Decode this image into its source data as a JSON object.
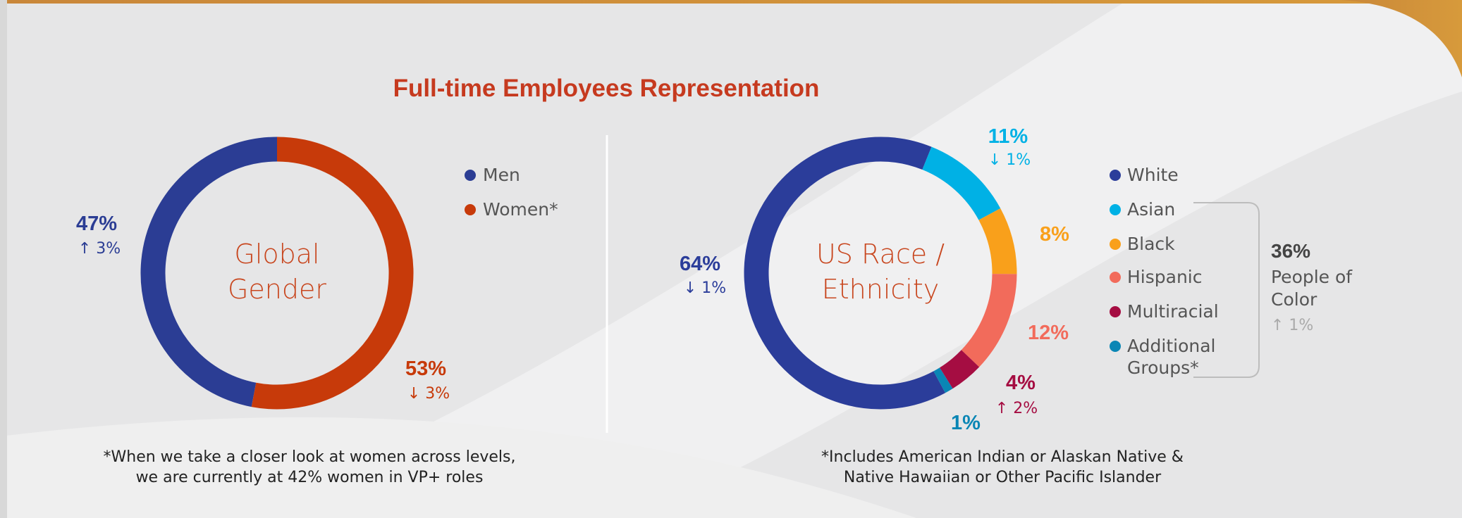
{
  "title": "Full-time Employees Representation",
  "chart_data": [
    {
      "type": "donut",
      "center_label": "Global Gender",
      "categories": [
        "Men",
        "Women*"
      ],
      "values": [
        47,
        53
      ],
      "value_labels": [
        "47%",
        "53%"
      ],
      "changes": [
        "↑ 3%",
        "↓ 3%"
      ],
      "colors": [
        "#2b3d94",
        "#c73a0a"
      ],
      "footnote": [
        "*When we take a closer look at women across levels,",
        "we are currently at 42% women in VP+ roles"
      ]
    },
    {
      "type": "donut",
      "center_label": "US Race / Ethnicity",
      "categories": [
        "White",
        "Asian",
        "Black",
        "Hispanic",
        "Multiracial",
        "Additional Groups*"
      ],
      "values": [
        64,
        11,
        8,
        12,
        4,
        1
      ],
      "value_labels": [
        "64%",
        "11%",
        "8%",
        "12%",
        "4%",
        "1%"
      ],
      "changes": [
        "↓ 1%",
        "↓ 1%",
        null,
        null,
        "↑ 2%",
        null
      ],
      "colors": [
        "#2b3d9a",
        "#00b1e5",
        "#f9a01b",
        "#f26b5b",
        "#a50d42",
        "#0a86b5"
      ],
      "group_label": {
        "value_label": "36%",
        "text": "People of Color",
        "change": "↑ 1%"
      },
      "footnote": [
        "*Includes American Indian or Alaskan Native &",
        "Native Hawaiian or Other Pacific Islander"
      ]
    }
  ]
}
